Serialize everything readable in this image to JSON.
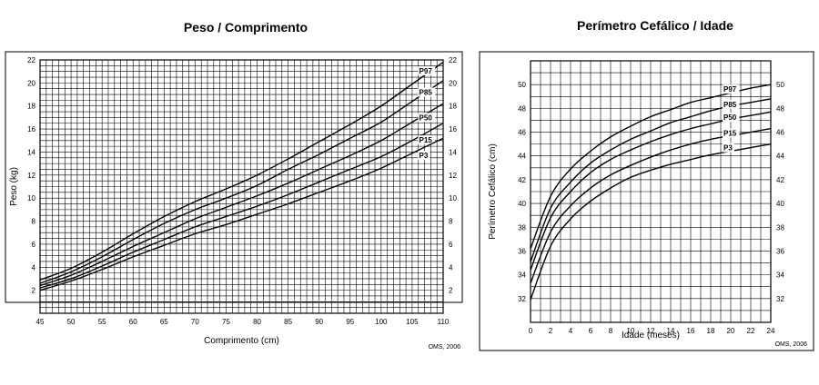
{
  "chart_data": [
    {
      "type": "line",
      "title": "Peso / Comprimento",
      "xlabel": "Comprimento (cm)",
      "ylabel": "Peso (kg)",
      "xlim": [
        45,
        110
      ],
      "ylim": [
        0,
        22
      ],
      "xticks": [
        45,
        50,
        55,
        60,
        65,
        70,
        75,
        80,
        85,
        90,
        95,
        100,
        105,
        110
      ],
      "yticks": [
        2,
        4,
        6,
        8,
        10,
        12,
        14,
        16,
        18,
        20,
        22
      ],
      "grid": true,
      "source": "OMS, 2006",
      "series": [
        {
          "name": "P97",
          "x": [
            45,
            50,
            55,
            60,
            65,
            70,
            75,
            80,
            85,
            90,
            95,
            100,
            105,
            110
          ],
          "values": [
            2.9,
            3.9,
            5.3,
            6.9,
            8.4,
            9.7,
            10.8,
            12.0,
            13.4,
            14.9,
            16.4,
            18.0,
            19.9,
            21.8
          ]
        },
        {
          "name": "P85",
          "x": [
            45,
            50,
            55,
            60,
            65,
            70,
            75,
            80,
            85,
            90,
            95,
            100,
            105,
            110
          ],
          "values": [
            2.6,
            3.6,
            4.9,
            6.4,
            7.8,
            9.0,
            10.0,
            11.1,
            12.5,
            13.8,
            15.2,
            16.6,
            18.4,
            20.2
          ]
        },
        {
          "name": "P50",
          "x": [
            45,
            50,
            55,
            60,
            65,
            70,
            75,
            80,
            85,
            90,
            95,
            100,
            105,
            110
          ],
          "values": [
            2.4,
            3.3,
            4.5,
            5.8,
            7.0,
            8.2,
            9.2,
            10.2,
            11.3,
            12.5,
            13.7,
            15.0,
            16.6,
            18.2
          ]
        },
        {
          "name": "P15",
          "x": [
            45,
            50,
            55,
            60,
            65,
            70,
            75,
            80,
            85,
            90,
            95,
            100,
            105,
            110
          ],
          "values": [
            2.2,
            3.0,
            4.1,
            5.3,
            6.4,
            7.5,
            8.4,
            9.3,
            10.3,
            11.4,
            12.5,
            13.6,
            15.0,
            16.5
          ]
        },
        {
          "name": "P3",
          "x": [
            45,
            50,
            55,
            60,
            65,
            70,
            75,
            80,
            85,
            90,
            95,
            100,
            105,
            110
          ],
          "values": [
            2.0,
            2.8,
            3.8,
            4.9,
            5.9,
            6.9,
            7.7,
            8.6,
            9.5,
            10.5,
            11.5,
            12.6,
            13.9,
            15.2
          ]
        }
      ]
    },
    {
      "type": "line",
      "title": "Perímetro Cefálico / Idade",
      "xlabel": "Idade (meses)",
      "ylabel": "Perímetro Cefálico (cm)",
      "xlim": [
        0,
        24
      ],
      "ylim": [
        30,
        52
      ],
      "xticks": [
        0,
        2,
        4,
        6,
        8,
        10,
        12,
        14,
        16,
        18,
        20,
        22,
        24
      ],
      "yticks": [
        32,
        34,
        36,
        38,
        40,
        42,
        44,
        46,
        48,
        50
      ],
      "grid": true,
      "source": "OMS, 2006",
      "series": [
        {
          "name": "P97",
          "x": [
            0,
            2,
            4,
            6,
            8,
            10,
            12,
            14,
            16,
            18,
            20,
            22,
            24
          ],
          "values": [
            36.2,
            40.6,
            42.9,
            44.4,
            45.6,
            46.5,
            47.3,
            47.9,
            48.5,
            48.9,
            49.3,
            49.7,
            50.0
          ]
        },
        {
          "name": "P85",
          "x": [
            0,
            2,
            4,
            6,
            8,
            10,
            12,
            14,
            16,
            18,
            20,
            22,
            24
          ],
          "values": [
            35.1,
            39.6,
            41.8,
            43.4,
            44.5,
            45.4,
            46.1,
            46.8,
            47.3,
            47.8,
            48.2,
            48.5,
            48.8
          ]
        },
        {
          "name": "P50",
          "x": [
            0,
            2,
            4,
            6,
            8,
            10,
            12,
            14,
            16,
            18,
            20,
            22,
            24
          ],
          "values": [
            34.4,
            38.8,
            41.0,
            42.6,
            43.7,
            44.5,
            45.2,
            45.8,
            46.3,
            46.7,
            47.1,
            47.4,
            47.7
          ]
        },
        {
          "name": "P15",
          "x": [
            0,
            2,
            4,
            6,
            8,
            10,
            12,
            14,
            16,
            18,
            20,
            22,
            24
          ],
          "values": [
            33.3,
            37.6,
            39.8,
            41.3,
            42.4,
            43.2,
            43.9,
            44.5,
            45.0,
            45.4,
            45.7,
            46.0,
            46.3
          ]
        },
        {
          "name": "P3",
          "x": [
            0,
            2,
            4,
            6,
            8,
            10,
            12,
            14,
            16,
            18,
            20,
            22,
            24
          ],
          "values": [
            31.9,
            36.4,
            38.7,
            40.2,
            41.3,
            42.2,
            42.8,
            43.3,
            43.7,
            44.1,
            44.4,
            44.7,
            45.0
          ]
        }
      ]
    }
  ]
}
